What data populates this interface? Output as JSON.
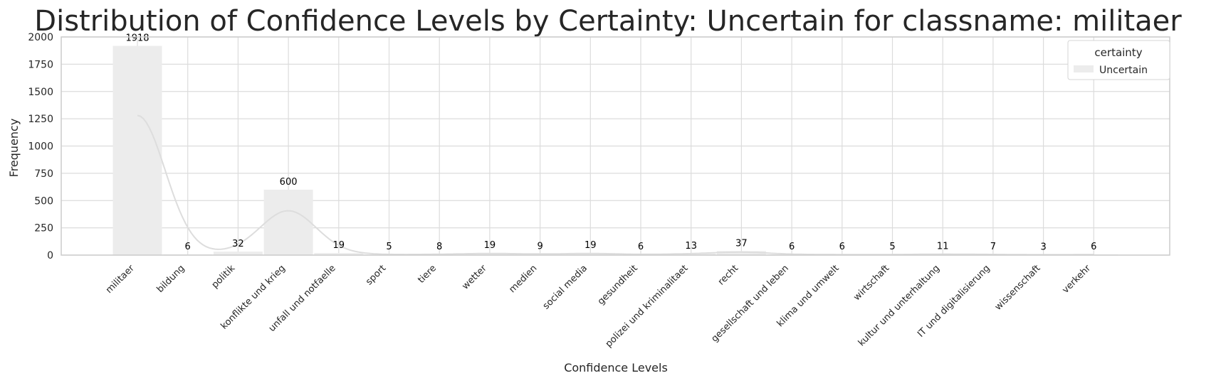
{
  "chart_data": {
    "type": "bar",
    "title": "Distribution of Confidence Levels by Certainty: Uncertain for classname: militaer",
    "xlabel": "Confidence Levels",
    "ylabel": "Frequency",
    "ylim": [
      0,
      2000
    ],
    "yticks": [
      0,
      250,
      500,
      750,
      1000,
      1250,
      1500,
      1750,
      2000
    ],
    "grid": true,
    "categories": [
      "militaer",
      "bildung",
      "politik",
      "konflikte und krieg",
      "unfall und notfaelle",
      "sport",
      "tiere",
      "wetter",
      "medien",
      "social media",
      "gesundheit",
      "polizei und kriminalitaet",
      "recht",
      "gesellschaft und leben",
      "klima und umwelt",
      "wirtschaft",
      "kultur und unterhaltung",
      "IT und digitalisierung",
      "wissenschaft",
      "verkehr"
    ],
    "series": [
      {
        "name": "Uncertain",
        "values": [
          1918,
          6,
          32,
          600,
          19,
          5,
          8,
          19,
          9,
          19,
          6,
          13,
          37,
          6,
          6,
          5,
          11,
          7,
          3,
          6
        ],
        "color": "#ececec"
      }
    ],
    "kde_color": "#dddddd",
    "legend": {
      "title": "certainty",
      "position": "top-right",
      "entries": [
        "Uncertain"
      ]
    }
  }
}
